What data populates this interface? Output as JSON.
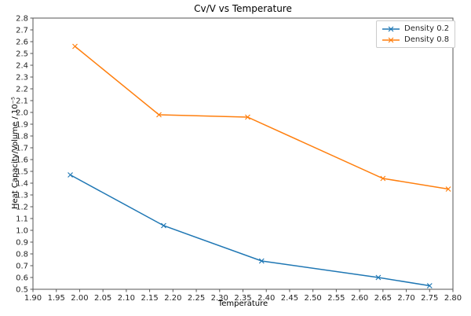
{
  "figure": {
    "background": "#ffffff",
    "axis_color": "#555555",
    "text_color": "#262626"
  },
  "chart_data": {
    "type": "line",
    "title": "Cv/V vs Temperature",
    "xlabel": "Temperature",
    "ylabel": "Heat Capacity/Volume / 10⁻⁵",
    "xlim": [
      1.9,
      2.8
    ],
    "ylim": [
      0.5,
      2.8
    ],
    "grid": false,
    "legend_position": "upper right",
    "marker": "x",
    "x_ticks": [
      "1.90",
      "1.95",
      "2.00",
      "2.05",
      "2.10",
      "2.15",
      "2.20",
      "2.25",
      "2.30",
      "2.35",
      "2.40",
      "2.45",
      "2.50",
      "2.55",
      "2.60",
      "2.65",
      "2.70",
      "2.75",
      "2.80"
    ],
    "y_ticks": [
      "0.5",
      "0.6",
      "0.7",
      "0.8",
      "0.9",
      "1.0",
      "1.1",
      "1.2",
      "1.3",
      "1.4",
      "1.5",
      "1.6",
      "1.7",
      "1.8",
      "1.9",
      "2.0",
      "2.1",
      "2.2",
      "2.3",
      "2.4",
      "2.5",
      "2.6",
      "2.7",
      "2.8"
    ],
    "series": [
      {
        "name": "Density 0.2",
        "color": "#1f77b4",
        "x": [
          1.98,
          2.18,
          2.39,
          2.64,
          2.75
        ],
        "y": [
          1.47,
          1.04,
          0.74,
          0.6,
          0.53
        ]
      },
      {
        "name": "Density 0.8",
        "color": "#ff7f0e",
        "x": [
          1.99,
          2.17,
          2.36,
          2.65,
          2.79
        ],
        "y": [
          2.56,
          1.98,
          1.96,
          1.44,
          1.35
        ]
      }
    ]
  }
}
